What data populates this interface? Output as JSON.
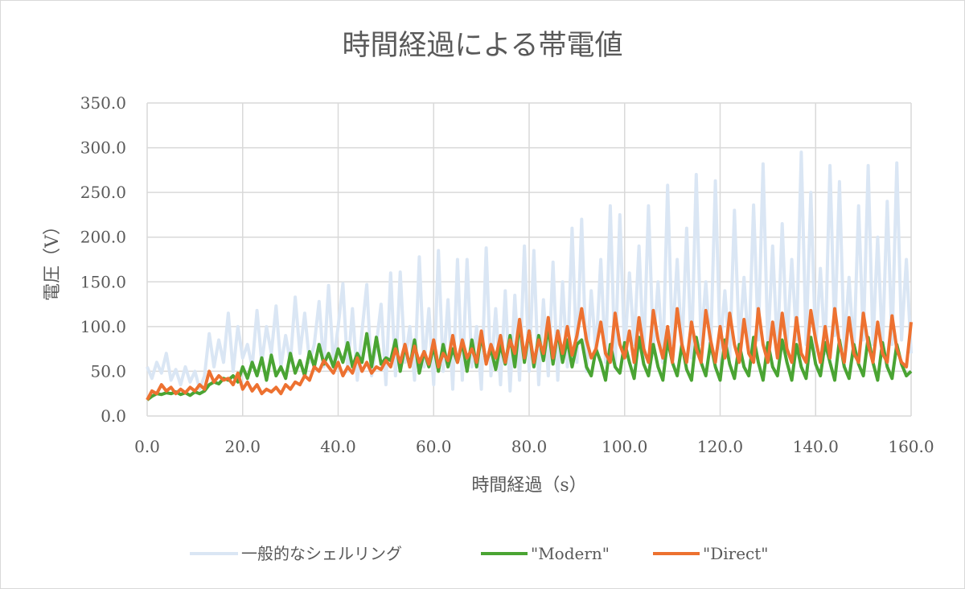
{
  "chart_data": {
    "type": "line",
    "title": "時間経過による帯電値",
    "xlabel": "時間経過（s）",
    "ylabel": "電圧（V）",
    "xlim": [
      0,
      160
    ],
    "ylim": [
      0,
      350
    ],
    "x_ticks": [
      "0.0",
      "20.0",
      "40.0",
      "60.0",
      "80.0",
      "100.0",
      "120.0",
      "140.0",
      "160.0"
    ],
    "y_ticks": [
      "0.0",
      "50.0",
      "100.0",
      "150.0",
      "200.0",
      "250.0",
      "300.0",
      "350.0"
    ],
    "grid": true,
    "legend_position": "bottom",
    "x_start": 0,
    "x_step": 1,
    "series": [
      {
        "name": "一般的なシェルリング",
        "color": "#dae6f4",
        "values": [
          55,
          42,
          60,
          48,
          70,
          40,
          52,
          35,
          55,
          38,
          50,
          30,
          45,
          92,
          55,
          85,
          60,
          115,
          50,
          100,
          65,
          80,
          55,
          118,
          60,
          100,
          70,
          123,
          55,
          90,
          60,
          133,
          70,
          115,
          60,
          80,
          128,
          55,
          146,
          60,
          100,
          148,
          50,
          120,
          40,
          95,
          147,
          45,
          80,
          125,
          35,
          160,
          45,
          161,
          60,
          100,
          40,
          178,
          55,
          120,
          35,
          185,
          50,
          130,
          30,
          175,
          40,
          175,
          55,
          100,
          30,
          188,
          45,
          120,
          35,
          140,
          28,
          135,
          40,
          190,
          50,
          185,
          35,
          130,
          45,
          172,
          40,
          150,
          55,
          210,
          60,
          220,
          50,
          140,
          70,
          175,
          60,
          235,
          55,
          225,
          70,
          160,
          80,
          190,
          65,
          235,
          75,
          150,
          60,
          258,
          80,
          175,
          70,
          210,
          65,
          270,
          80,
          150,
          70,
          263,
          75,
          140,
          65,
          230,
          80,
          155,
          70,
          236,
          85,
          282,
          75,
          190,
          70,
          215,
          80,
          175,
          85,
          295,
          80,
          250,
          75,
          165,
          70,
          280,
          90,
          262,
          75,
          155,
          70,
          235,
          85,
          280,
          80,
          200,
          75,
          240,
          80,
          283,
          85,
          175,
          70
        ]
      },
      {
        "name": "\"Modern\"",
        "color": "#4aa433",
        "values": [
          18,
          22,
          25,
          24,
          26,
          25,
          27,
          24,
          26,
          23,
          27,
          25,
          28,
          35,
          38,
          36,
          42,
          40,
          45,
          38,
          55,
          42,
          60,
          45,
          65,
          40,
          68,
          45,
          55,
          42,
          70,
          48,
          62,
          45,
          72,
          55,
          80,
          58,
          70,
          55,
          75,
          60,
          82,
          55,
          70,
          60,
          92,
          55,
          88,
          58,
          65,
          62,
          85,
          50,
          78,
          55,
          85,
          48,
          72,
          55,
          78,
          50,
          80,
          55,
          75,
          60,
          82,
          50,
          85,
          55,
          90,
          60,
          75,
          52,
          80,
          58,
          90,
          55,
          105,
          60,
          95,
          55,
          90,
          62,
          100,
          58,
          95,
          60,
          85,
          55,
          80,
          85,
          55,
          45,
          75,
          60,
          40,
          80,
          55,
          48,
          82,
          60,
          42,
          88,
          58,
          45,
          80,
          55,
          40,
          85,
          60,
          45,
          80,
          52,
          40,
          88,
          60,
          45,
          82,
          55,
          40,
          85,
          58,
          42,
          80,
          55,
          45,
          88,
          60,
          40,
          82,
          55,
          45,
          85,
          60,
          40,
          80,
          55,
          42,
          88,
          58,
          45,
          82,
          60,
          40,
          85,
          55,
          42,
          80,
          58,
          45,
          88,
          60,
          40,
          82,
          55,
          42,
          80,
          58,
          45,
          50
        ]
      },
      {
        "name": "\"Direct\"",
        "color": "#ed7130",
        "values": [
          18,
          28,
          25,
          35,
          28,
          32,
          25,
          30,
          26,
          32,
          28,
          35,
          30,
          50,
          38,
          45,
          40,
          42,
          35,
          48,
          30,
          38,
          28,
          35,
          25,
          30,
          27,
          32,
          25,
          35,
          30,
          38,
          35,
          45,
          40,
          55,
          50,
          62,
          55,
          48,
          60,
          45,
          55,
          48,
          65,
          50,
          60,
          48,
          55,
          52,
          62,
          55,
          75,
          60,
          80,
          55,
          78,
          60,
          72,
          58,
          85,
          55,
          70,
          62,
          90,
          60,
          85,
          65,
          75,
          60,
          95,
          58,
          80,
          65,
          90,
          60,
          85,
          70,
          108,
          65,
          95,
          60,
          85,
          70,
          110,
          65,
          95,
          70,
          100,
          68,
          90,
          120,
          85,
          65,
          75,
          105,
          70,
          60,
          115,
          80,
          65,
          95,
          60,
          110,
          75,
          60,
          118,
          85,
          65,
          100,
          60,
          120,
          80,
          60,
          105,
          75,
          60,
          118,
          85,
          60,
          100,
          65,
          115,
          80,
          60,
          108,
          70,
          60,
          120,
          80,
          60,
          105,
          65,
          115,
          75,
          60,
          110,
          70,
          60,
          118,
          85,
          60,
          100,
          65,
          120,
          80,
          60,
          110,
          70,
          60,
          115,
          80,
          60,
          105,
          70,
          60,
          112,
          75,
          60,
          55,
          105
        ]
      }
    ]
  }
}
